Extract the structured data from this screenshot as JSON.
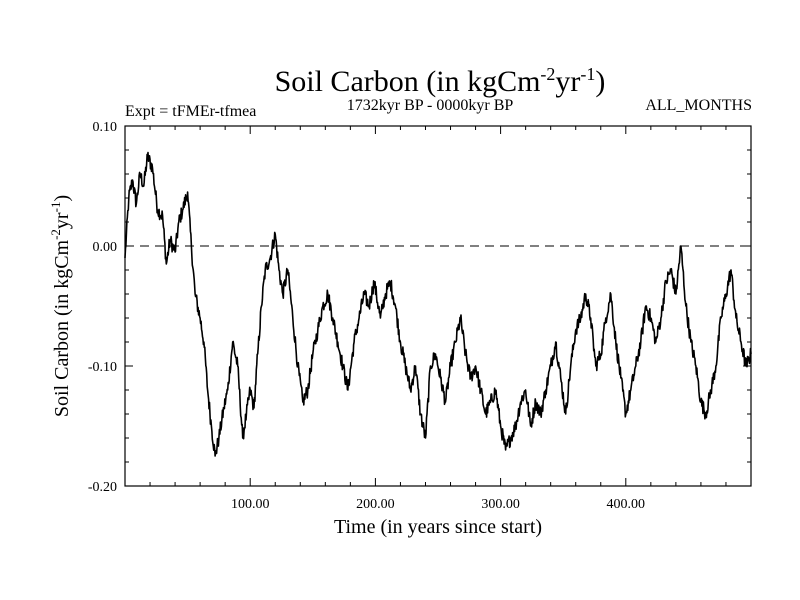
{
  "chart_data": {
    "type": "line",
    "title": "Soil Carbon (in kgCm",
    "title_sup1": "-2",
    "title_mid": "yr",
    "title_sup2": "-1",
    "title_end": ")",
    "subtitle_left": "Expt = tFMEr-tfmea",
    "subtitle_center": "1732kyr BP - 0000kyr BP",
    "subtitle_right": "ALL_MONTHS",
    "xlabel": "Time (in years since start)",
    "ylabel": {
      "part1": "Soil Carbon (in kgCm",
      "sup1": "-2",
      "part2": "yr",
      "sup2": "-1",
      "part3": ")"
    },
    "xlim": [
      0,
      500
    ],
    "ylim": [
      -0.2,
      0.1
    ],
    "xticks": [
      100,
      200,
      300,
      400
    ],
    "xtick_labels": [
      "100.00",
      "200.00",
      "300.00",
      "400.00"
    ],
    "yticks": [
      0.1,
      0.0,
      -0.1,
      -0.2
    ],
    "ytick_labels": [
      "0.10",
      "0.00",
      "-0.10",
      "-0.20"
    ],
    "reference_line": {
      "y": 0.0,
      "style": "dashed"
    },
    "line_color": "#000000",
    "noise_amplitude": 0.006,
    "series": [
      {
        "name": "Soil Carbon",
        "x": [
          0,
          3,
          6,
          9,
          12,
          15,
          18,
          22,
          26,
          30,
          33,
          36,
          40,
          43,
          46,
          50,
          53,
          56,
          60,
          63,
          66,
          69,
          72,
          75,
          79,
          82,
          86,
          90,
          94,
          97,
          100,
          103,
          106,
          109,
          112,
          116,
          120,
          123,
          126,
          130,
          134,
          138,
          142,
          146,
          150,
          154,
          158,
          162,
          166,
          170,
          174,
          178,
          183,
          187,
          191,
          195,
          199,
          204,
          208,
          212,
          216,
          220,
          224,
          228,
          232,
          236,
          240,
          244,
          248,
          252,
          256,
          260,
          264,
          268,
          272,
          276,
          280,
          284,
          288,
          292,
          296,
          300,
          304,
          308,
          312,
          316,
          320,
          324,
          328,
          332,
          336,
          340,
          344,
          348,
          352,
          356,
          360,
          364,
          368,
          372,
          376,
          380,
          384,
          388,
          392,
          396,
          400,
          404,
          408,
          412,
          416,
          420,
          424,
          428,
          432,
          436,
          440,
          444,
          448,
          452,
          456,
          460,
          464,
          468,
          472,
          476,
          480,
          484,
          488,
          492,
          496,
          500
        ],
        "values": [
          -0.01,
          0.04,
          0.055,
          0.035,
          0.06,
          0.05,
          0.075,
          0.065,
          0.03,
          0.025,
          -0.015,
          0.005,
          -0.005,
          0.02,
          0.03,
          0.045,
          0.0,
          -0.04,
          -0.06,
          -0.08,
          -0.12,
          -0.15,
          -0.175,
          -0.16,
          -0.135,
          -0.12,
          -0.08,
          -0.1,
          -0.16,
          -0.14,
          -0.12,
          -0.135,
          -0.09,
          -0.05,
          -0.02,
          -0.01,
          0.01,
          -0.02,
          -0.04,
          -0.02,
          -0.06,
          -0.1,
          -0.13,
          -0.12,
          -0.09,
          -0.07,
          -0.05,
          -0.04,
          -0.06,
          -0.08,
          -0.1,
          -0.12,
          -0.08,
          -0.06,
          -0.04,
          -0.05,
          -0.03,
          -0.06,
          -0.04,
          -0.03,
          -0.05,
          -0.08,
          -0.1,
          -0.12,
          -0.1,
          -0.14,
          -0.16,
          -0.1,
          -0.09,
          -0.11,
          -0.13,
          -0.1,
          -0.08,
          -0.06,
          -0.09,
          -0.11,
          -0.1,
          -0.12,
          -0.14,
          -0.13,
          -0.12,
          -0.15,
          -0.17,
          -0.16,
          -0.15,
          -0.13,
          -0.12,
          -0.15,
          -0.13,
          -0.14,
          -0.12,
          -0.1,
          -0.08,
          -0.11,
          -0.14,
          -0.1,
          -0.07,
          -0.06,
          -0.04,
          -0.06,
          -0.1,
          -0.09,
          -0.06,
          -0.04,
          -0.08,
          -0.11,
          -0.14,
          -0.12,
          -0.1,
          -0.08,
          -0.05,
          -0.06,
          -0.08,
          -0.06,
          -0.03,
          -0.02,
          -0.04,
          0.0,
          -0.05,
          -0.08,
          -0.1,
          -0.13,
          -0.14,
          -0.12,
          -0.1,
          -0.06,
          -0.04,
          -0.02,
          -0.06,
          -0.08,
          -0.1,
          -0.09
        ]
      }
    ]
  }
}
